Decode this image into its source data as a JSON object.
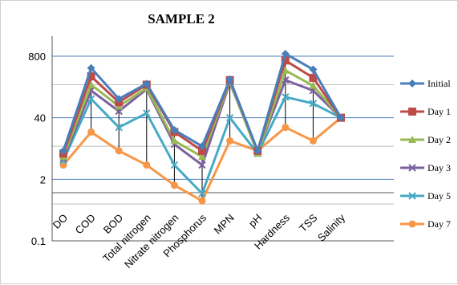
{
  "chart_data": {
    "type": "line",
    "title": "SAMPLE 2",
    "xlabel": "",
    "ylabel": "",
    "y_scale": "log",
    "ylim": [
      0.1,
      1500
    ],
    "y_ticks": [
      {
        "value": 0.1,
        "label": "0.1"
      },
      {
        "value": 2,
        "label": "2"
      },
      {
        "value": 40,
        "label": "40"
      },
      {
        "value": 800,
        "label": "800"
      }
    ],
    "grid": true,
    "legend_position": "right",
    "categories": [
      "DO",
      "COD",
      "BOD",
      "Total nitrogen",
      "Nitrate nitrogen",
      "Phosphorus",
      "MPN",
      "pH",
      "Hardness",
      "TSS",
      "Salinity"
    ],
    "series": [
      {
        "name": "Initial",
        "color": "#4a7ebb",
        "marker": "diamond",
        "values": [
          8,
          450,
          100,
          210,
          22,
          10,
          260,
          8,
          900,
          420,
          40
        ]
      },
      {
        "name": "Day 1",
        "color": "#be4b48",
        "marker": "square",
        "values": [
          7,
          300,
          85,
          200,
          20,
          8,
          250,
          8,
          650,
          280,
          40
        ]
      },
      {
        "name": "Day 2",
        "color": "#98b954",
        "marker": "triangle",
        "values": [
          6,
          200,
          70,
          170,
          13,
          6,
          230,
          7,
          400,
          190,
          40
        ]
      },
      {
        "name": "Day 3",
        "color": "#7d60a0",
        "marker": "x",
        "values": [
          5.5,
          150,
          55,
          160,
          11,
          4,
          220,
          7.5,
          250,
          150,
          40
        ]
      },
      {
        "name": "Day 5",
        "color": "#46aac5",
        "marker": "x",
        "values": [
          5,
          100,
          25,
          50,
          4,
          1,
          40,
          7,
          110,
          80,
          40
        ]
      },
      {
        "name": "Day 7",
        "color": "#f79646",
        "marker": "circle",
        "values": [
          4,
          20,
          8,
          4,
          1.5,
          0.7,
          13,
          8,
          25,
          13,
          40
        ]
      }
    ],
    "drop_lines": true
  }
}
